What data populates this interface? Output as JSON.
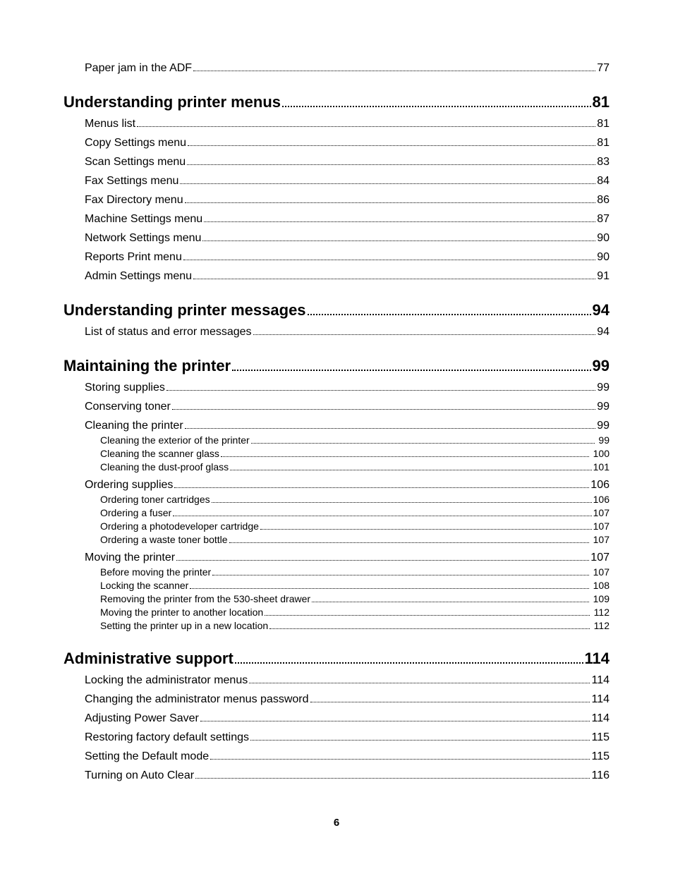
{
  "page_number": "6",
  "toc": [
    {
      "level": 1,
      "label": "Paper jam in the ADF",
      "page": "77",
      "first": true
    },
    {
      "level": 0,
      "label": "Understanding printer menus",
      "page": "81"
    },
    {
      "level": 1,
      "label": "Menus list",
      "page": "81"
    },
    {
      "level": 1,
      "label": "Copy Settings menu",
      "page": "81"
    },
    {
      "level": 1,
      "label": "Scan Settings menu",
      "page": "83"
    },
    {
      "level": 1,
      "label": "Fax Settings menu",
      "page": "84"
    },
    {
      "level": 1,
      "label": "Fax Directory menu",
      "page": "86"
    },
    {
      "level": 1,
      "label": "Machine Settings menu",
      "page": "87"
    },
    {
      "level": 1,
      "label": "Network Settings menu",
      "page": "90"
    },
    {
      "level": 1,
      "label": "Reports Print menu",
      "page": "90"
    },
    {
      "level": 1,
      "label": "Admin Settings menu",
      "page": "91"
    },
    {
      "level": 0,
      "label": "Understanding printer messages",
      "page": "94"
    },
    {
      "level": 1,
      "label": "List of status and error messages",
      "page": "94"
    },
    {
      "level": 0,
      "label": "Maintaining the printer",
      "page": "99"
    },
    {
      "level": 1,
      "label": "Storing supplies",
      "page": "99"
    },
    {
      "level": 1,
      "label": "Conserving toner",
      "page": "99"
    },
    {
      "level": 1,
      "label": "Cleaning the printer",
      "page": "99"
    },
    {
      "level": 2,
      "label": "Cleaning the exterior of the printer",
      "page": "99",
      "pad": true
    },
    {
      "level": 2,
      "label": "Cleaning the scanner glass",
      "page": "100",
      "pad": true
    },
    {
      "level": 2,
      "label": "Cleaning the dust-proof glass",
      "page": "101"
    },
    {
      "level": 1,
      "label": "Ordering supplies",
      "page": "106"
    },
    {
      "level": 2,
      "label": "Ordering toner cartridges",
      "page": "106"
    },
    {
      "level": 2,
      "label": "Ordering a fuser",
      "page": "107"
    },
    {
      "level": 2,
      "label": "Ordering a photodeveloper cartridge",
      "page": "107"
    },
    {
      "level": 2,
      "label": "Ordering a waste toner bottle",
      "page": "107",
      "pad": true
    },
    {
      "level": 1,
      "label": "Moving the printer",
      "page": "107"
    },
    {
      "level": 2,
      "label": "Before moving the printer",
      "page": "107",
      "pad": true
    },
    {
      "level": 2,
      "label": "Locking the scanner",
      "page": "108",
      "pad": true
    },
    {
      "level": 2,
      "label": "Removing the printer from the 530-sheet drawer",
      "page": "109",
      "pad": true
    },
    {
      "level": 2,
      "label": "Moving the printer to another location",
      "page": "112",
      "pad": true
    },
    {
      "level": 2,
      "label": "Setting the printer up in a new location",
      "page": "112",
      "pad": true
    },
    {
      "level": 0,
      "label": "Administrative support",
      "page": "114"
    },
    {
      "level": 1,
      "label": "Locking the administrator menus",
      "page": "114"
    },
    {
      "level": 1,
      "label": "Changing the administrator menus password",
      "page": "114"
    },
    {
      "level": 1,
      "label": "Adjusting Power Saver",
      "page": "114"
    },
    {
      "level": 1,
      "label": "Restoring factory default settings",
      "page": "115"
    },
    {
      "level": 1,
      "label": "Setting the Default mode",
      "page": "115"
    },
    {
      "level": 1,
      "label": "Turning on Auto Clear",
      "page": "116"
    }
  ]
}
